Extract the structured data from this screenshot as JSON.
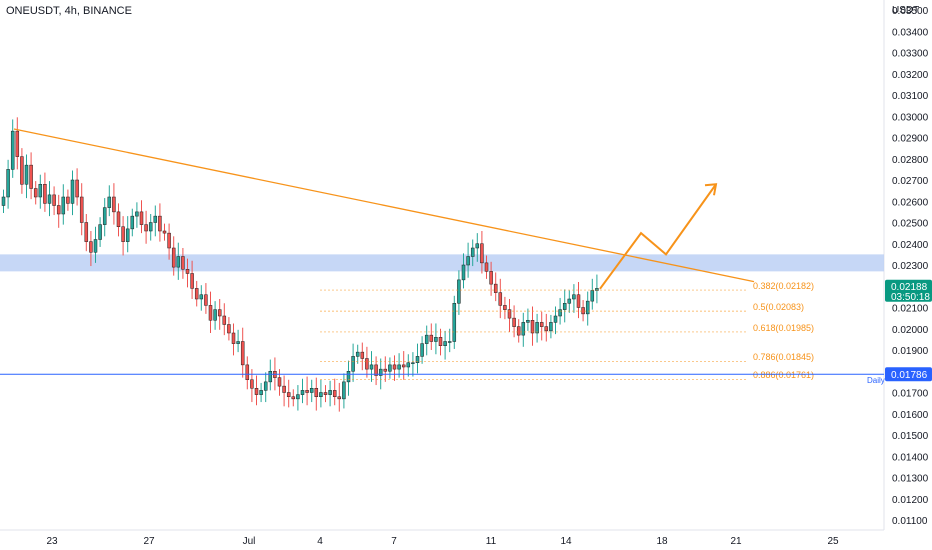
{
  "header": {
    "symbol": "ONEUSDT, 4h, BINANCE",
    "unit": "USDT"
  },
  "colors": {
    "up": "#26a69a",
    "down": "#ef5350",
    "wick": "#1e1e1e",
    "trend": "#f7931a",
    "zone": "#bcd0f5",
    "daily": "#2962ff",
    "price_tag": "#089981"
  },
  "chart_data": {
    "type": "candlestick",
    "ylim": [
      0.011,
      0.035
    ],
    "y_ticks": [
      "0.03500",
      "0.03400",
      "0.03300",
      "0.03200",
      "0.03100",
      "0.03000",
      "0.02900",
      "0.02800",
      "0.02700",
      "0.02600",
      "0.02500",
      "0.02400",
      "0.02300",
      "0.02200",
      "0.02100",
      "0.02000",
      "0.01900",
      "0.01800",
      "0.01700",
      "0.01600",
      "0.01500",
      "0.01400",
      "0.01300",
      "0.01200",
      "0.01100"
    ],
    "x_ticks": [
      "23",
      "27",
      "Jul",
      "4",
      "7",
      "11",
      "14",
      "18",
      "21",
      "25"
    ],
    "series_close": [
      0.0262,
      0.0275,
      0.0293,
      0.0281,
      0.0268,
      0.0277,
      0.0266,
      0.0262,
      0.0268,
      0.0259,
      0.0263,
      0.0258,
      0.0254,
      0.0262,
      0.0259,
      0.027,
      0.0262,
      0.025,
      0.0241,
      0.0236,
      0.0242,
      0.0249,
      0.0257,
      0.0262,
      0.0255,
      0.0248,
      0.0241,
      0.0247,
      0.0253,
      0.0255,
      0.0249,
      0.0246,
      0.025,
      0.0253,
      0.0246,
      0.0245,
      0.0238,
      0.0229,
      0.0234,
      0.0228,
      0.0226,
      0.0219,
      0.0214,
      0.0216,
      0.0211,
      0.0204,
      0.0209,
      0.0206,
      0.0202,
      0.0198,
      0.0193,
      0.0194,
      0.0183,
      0.0176,
      0.0172,
      0.0169,
      0.0171,
      0.0175,
      0.018,
      0.0177,
      0.0173,
      0.017,
      0.0168,
      0.0167,
      0.0169,
      0.0171,
      0.017,
      0.0172,
      0.0168,
      0.017,
      0.0169,
      0.0171,
      0.0168,
      0.0167,
      0.0175,
      0.018,
      0.0187,
      0.0189,
      0.0186,
      0.0181,
      0.0183,
      0.0178,
      0.0181,
      0.018,
      0.0183,
      0.0181,
      0.0183,
      0.0182,
      0.0184,
      0.0184,
      0.0187,
      0.0193,
      0.0197,
      0.0194,
      0.0196,
      0.0192,
      0.0194,
      0.0194,
      0.0212,
      0.0223,
      0.023,
      0.0234,
      0.0238,
      0.024,
      0.0231,
      0.0227,
      0.0221,
      0.0217,
      0.0211,
      0.0209,
      0.0205,
      0.0201,
      0.0197,
      0.0203,
      0.0204,
      0.0198,
      0.0203,
      0.0201,
      0.0199,
      0.0203,
      0.0206,
      0.0209,
      0.0212,
      0.0214,
      0.0216,
      0.021,
      0.0207,
      0.0213,
      0.0218,
      0.0219
    ],
    "trendline_start": 0.0294,
    "trendline_end": 0.02222,
    "resistance_zone": [
      0.0227,
      0.0235
    ],
    "fib_levels": [
      {
        "label": "0.382(0.02182)",
        "value": 0.02182
      },
      {
        "label": "0.5(0.02083)",
        "value": 0.02083
      },
      {
        "label": "0.618(0.01985)",
        "value": 0.01985
      },
      {
        "label": "0.786(0.01845)",
        "value": 0.01845
      },
      {
        "label": "0.886(0.01761)",
        "value": 0.01761
      }
    ],
    "projection": [
      0.02188,
      0.0245,
      0.0235,
      0.0268
    ],
    "daily_level": {
      "label": "Daily",
      "value": 0.01786
    },
    "last_price": {
      "price": "0.02188",
      "countdown": "03:50:18",
      "value": 0.02188
    },
    "daily_tag": {
      "text": "0.01786"
    }
  }
}
